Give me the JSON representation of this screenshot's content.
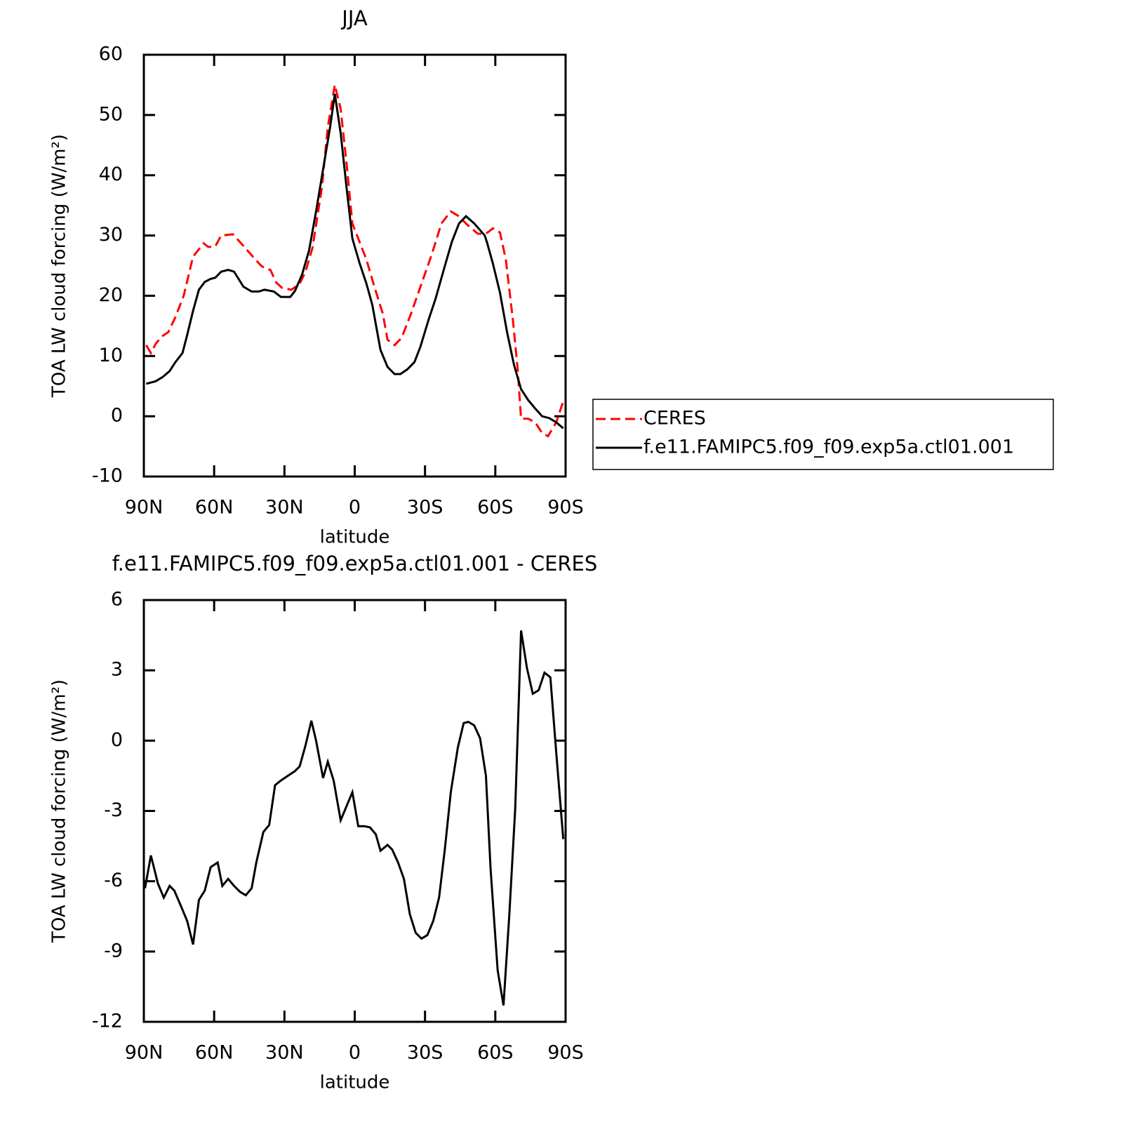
{
  "chart_data": [
    {
      "type": "line",
      "title": "JJA",
      "xlabel": "latitude",
      "ylabel": "TOA LW cloud forcing (W/m²)",
      "xlim": [
        90,
        -90
      ],
      "xticks": [
        {
          "value": 90,
          "label": "90N"
        },
        {
          "value": 60,
          "label": "60N"
        },
        {
          "value": 30,
          "label": "30N"
        },
        0,
        {
          "value": -30,
          "label": "30S"
        },
        {
          "value": -60,
          "label": "60S"
        },
        {
          "value": -90,
          "label": "90S"
        }
      ],
      "ylim": [
        -10,
        60
      ],
      "yticks": [
        -10,
        0,
        10,
        20,
        30,
        40,
        50,
        60
      ],
      "legend": "right",
      "series": [
        {
          "name": "CERES",
          "color": "#ff0000",
          "line_style": "dashed",
          "x": [
            89,
            87,
            85,
            82.5,
            79.5,
            76.5,
            73,
            69,
            64.5,
            62.5,
            59.5,
            57,
            52,
            48,
            43.5,
            40,
            38,
            36,
            33.5,
            31,
            27,
            23.5,
            21,
            18,
            14,
            11.5,
            8.5,
            6,
            3.5,
            1,
            -2,
            -5,
            -8,
            -12,
            -14,
            -17,
            -20,
            -24,
            -28.5,
            -33,
            -37,
            -41,
            -44,
            -48,
            -52.5,
            -56,
            -59,
            -62,
            -64.5,
            -67.5,
            -69.5,
            -71,
            -74,
            -77,
            -80,
            -82.5,
            -86,
            -89
          ],
          "values": [
            11.8,
            10.5,
            12,
            13.2,
            14,
            16.5,
            20,
            26.5,
            28.7,
            28.1,
            28.2,
            30,
            30.2,
            28.5,
            26.5,
            25,
            24.5,
            24.3,
            22.2,
            21.3,
            21,
            22,
            24,
            28,
            38,
            48,
            55,
            51,
            42,
            32,
            29,
            26,
            22,
            17,
            12.7,
            11.8,
            13,
            17,
            22,
            27,
            32,
            34,
            33.3,
            31.8,
            30.3,
            30.3,
            31.2,
            30.5,
            26,
            16,
            8,
            -0.4,
            -0.4,
            -1,
            -2.8,
            -3.3,
            -1,
            2.5
          ]
        },
        {
          "name": "f.e11.FAMIPC5.f09_f09.exp5a.ctl01.001",
          "color": "#000000",
          "line_style": "solid",
          "x": [
            89,
            85,
            82,
            79,
            76.5,
            73.5,
            71.5,
            69,
            66.5,
            64,
            61.5,
            59.5,
            57,
            54,
            51.5,
            47.5,
            44,
            41,
            38.5,
            34.5,
            31.5,
            27.5,
            25.5,
            22.5,
            19.5,
            16.5,
            13.5,
            10.5,
            8.5,
            6,
            3.5,
            1,
            -2,
            -5,
            -7.5,
            -11,
            -14,
            -17,
            -19.5,
            -22.5,
            -25.5,
            -28,
            -31.5,
            -34.5,
            -38.5,
            -41.5,
            -44.5,
            -47.5,
            -51,
            -55.5,
            -56.5,
            -59,
            -62,
            -65,
            -68,
            -71,
            -74,
            -77,
            -80,
            -83,
            -86,
            -89
          ],
          "values": [
            5.4,
            5.8,
            6.5,
            7.5,
            9,
            10.5,
            13.5,
            17.5,
            21,
            22.3,
            22.8,
            23,
            24,
            24.3,
            24,
            21.5,
            20.7,
            20.7,
            21,
            20.7,
            19.8,
            19.8,
            20.8,
            23.5,
            27.5,
            34,
            41,
            48,
            53.5,
            47,
            38,
            29.5,
            25.5,
            22,
            18.5,
            11,
            8.2,
            7,
            7,
            7.8,
            9,
            11.5,
            16,
            19.5,
            25,
            29,
            32,
            33.2,
            32,
            30,
            28.8,
            25.3,
            20.5,
            14,
            8.5,
            4.5,
            2.7,
            1.3,
            0,
            -0.3,
            -1,
            -2
          ]
        }
      ]
    },
    {
      "type": "line",
      "title": "f.e11.FAMIPC5.f09_f09.exp5a.ctl01.001 - CERES",
      "xlabel": "latitude",
      "ylabel": "TOA LW cloud forcing (W/m²)",
      "xlim": [
        90,
        -90
      ],
      "xticks": [
        {
          "value": 90,
          "label": "90N"
        },
        {
          "value": 60,
          "label": "60N"
        },
        {
          "value": 30,
          "label": "30N"
        },
        0,
        {
          "value": -30,
          "label": "30S"
        },
        {
          "value": -60,
          "label": "60S"
        },
        {
          "value": -90,
          "label": "90S"
        }
      ],
      "ylim": [
        -12,
        6
      ],
      "yticks": [
        -12,
        -9,
        -6,
        -3,
        0,
        3,
        6
      ],
      "series": [
        {
          "color": "#000000",
          "line_style": "solid",
          "x": [
            89.5,
            87,
            84,
            81.5,
            79,
            77,
            74,
            71.5,
            69,
            66.5,
            64,
            61.5,
            58.5,
            56.5,
            54,
            51.5,
            49,
            46.5,
            44,
            42,
            39,
            36.5,
            34,
            31.5,
            28.5,
            25.5,
            23.5,
            21,
            18.5,
            16.5,
            13.5,
            11.5,
            9,
            6,
            3.5,
            1,
            -1.5,
            -4,
            -6.5,
            -9,
            -11,
            -14,
            -16,
            -18.5,
            -21,
            -23.5,
            -26,
            -28.5,
            -31,
            -33.5,
            -36,
            -38.5,
            -41,
            -44,
            -46.5,
            -48.5,
            -51,
            -53.5,
            -56,
            -58,
            -61,
            -63.5,
            -66,
            -68.5,
            -71,
            -73.5,
            -76,
            -78.5,
            -81,
            -83.5,
            -86,
            -89
          ],
          "values": [
            -6.3,
            -4.9,
            -6.1,
            -6.7,
            -6.2,
            -6.4,
            -7.1,
            -7.7,
            -8.7,
            -6.8,
            -6.4,
            -5.4,
            -5.2,
            -6.2,
            -5.9,
            -6.2,
            -6.45,
            -6.6,
            -6.3,
            -5.2,
            -3.9,
            -3.6,
            -1.9,
            -1.7,
            -1.5,
            -1.3,
            -1.1,
            -0.2,
            0.85,
            0,
            -1.6,
            -0.9,
            -1.7,
            -3.4,
            -2.8,
            -2.2,
            -3.65,
            -3.65,
            -3.7,
            -4,
            -4.7,
            -4.45,
            -4.65,
            -5.2,
            -5.9,
            -7.4,
            -8.2,
            -8.45,
            -8.3,
            -7.7,
            -6.7,
            -4.6,
            -2.2,
            -0.3,
            0.75,
            0.8,
            0.65,
            0.1,
            -1.5,
            -5.5,
            -9.8,
            -11.3,
            -7.4,
            -2.9,
            4.7,
            3.1,
            2.0,
            2.15,
            2.9,
            2.7,
            -0.5,
            -4.2
          ]
        }
      ]
    }
  ]
}
